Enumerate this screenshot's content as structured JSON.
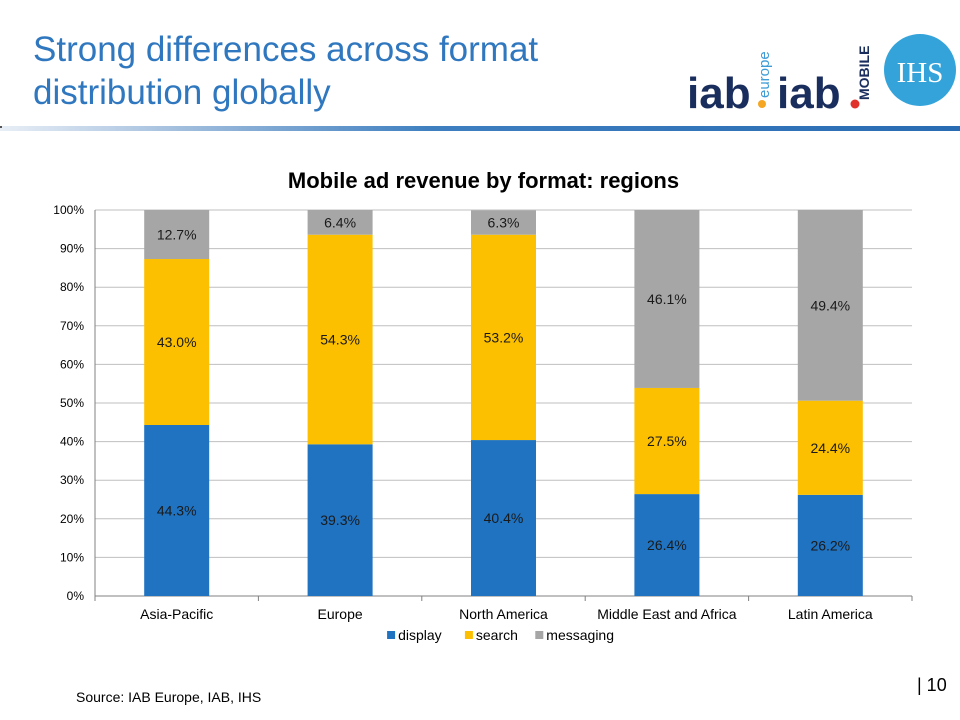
{
  "slide": {
    "title": "Strong differences across format distribution globally",
    "source": "Source: IAB Europe, IAB, IHS",
    "page_number": "| 10"
  },
  "logos": {
    "iab_europe": {
      "main": "iab",
      "sub": "europe"
    },
    "iab_mobile": {
      "main": "iab",
      "sub": "MOBILE"
    },
    "ihs": "IHS"
  },
  "colors": {
    "title": "#2f77bf",
    "display": "#1f73c1",
    "search": "#fcc000",
    "messaging": "#a6a6a6"
  },
  "chart_data": {
    "type": "bar",
    "stacked": true,
    "title": "Mobile ad revenue by format: regions",
    "categories": [
      "Asia-Pacific",
      "Europe",
      "North America",
      "Middle East and Africa",
      "Latin America"
    ],
    "series": [
      {
        "name": "display",
        "values": [
          44.3,
          39.3,
          40.4,
          26.4,
          26.2
        ],
        "labels": [
          "44.3%",
          "39.3%",
          "40.4%",
          "26.4%",
          "26.2%"
        ]
      },
      {
        "name": "search",
        "values": [
          43.0,
          54.3,
          53.2,
          27.5,
          24.4
        ],
        "labels": [
          "43.0%",
          "54.3%",
          "53.2%",
          "27.5%",
          "24.4%"
        ]
      },
      {
        "name": "messaging",
        "values": [
          12.7,
          6.4,
          6.3,
          46.1,
          49.4
        ],
        "labels": [
          "12.7%",
          "6.4%",
          "6.3%",
          "46.1%",
          "49.4%"
        ]
      }
    ],
    "ylim": [
      0,
      100
    ],
    "yticks": [
      "0%",
      "10%",
      "20%",
      "30%",
      "40%",
      "50%",
      "60%",
      "70%",
      "80%",
      "90%",
      "100%"
    ],
    "grid": true,
    "legend": "bottom",
    "xlabel": "",
    "ylabel": ""
  }
}
